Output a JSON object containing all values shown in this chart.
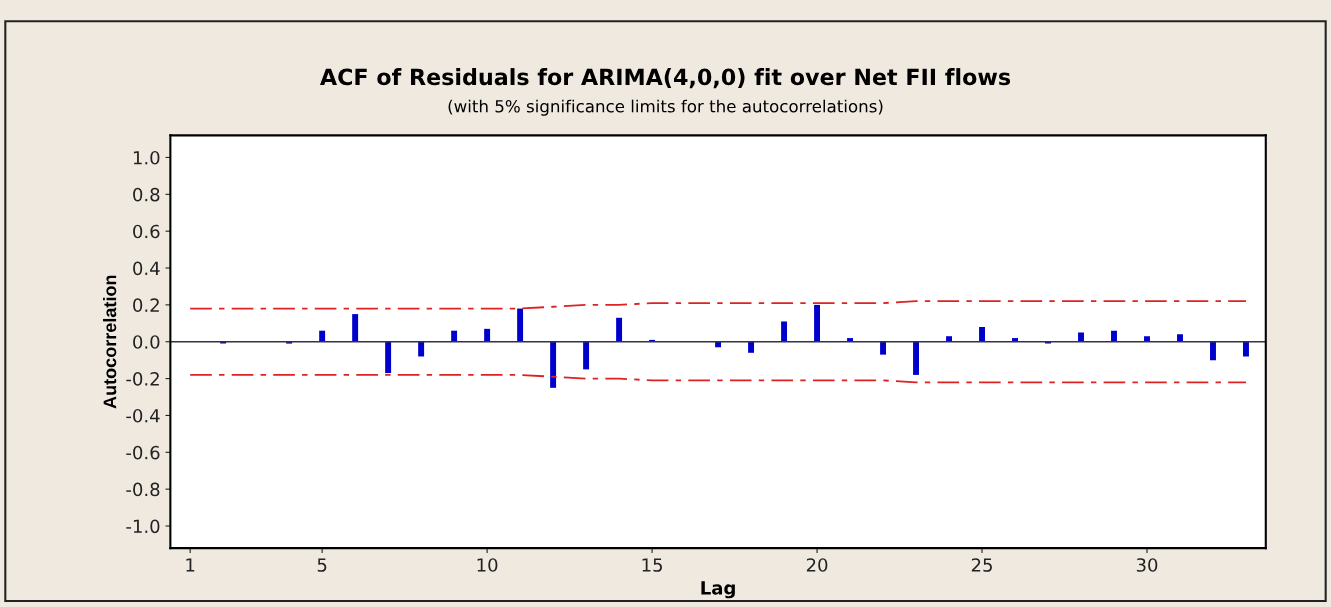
{
  "chart_data": {
    "type": "bar",
    "title": "ACF of Residuals for ARIMA(4,0,0) fit over Net FII flows",
    "subtitle": "(with 5% significance limits for the autocorrelations)",
    "xlabel": "Lag",
    "ylabel": "Autocorrelation",
    "x": [
      1,
      2,
      3,
      4,
      5,
      6,
      7,
      8,
      9,
      10,
      11,
      12,
      13,
      14,
      15,
      16,
      17,
      18,
      19,
      20,
      21,
      22,
      23,
      24,
      25,
      26,
      27,
      28,
      29,
      30,
      31,
      32,
      33
    ],
    "series": [
      {
        "color": "#0000cc",
        "values": [
          0.0,
          -0.01,
          0.0,
          -0.01,
          0.06,
          0.15,
          -0.17,
          -0.08,
          0.06,
          0.07,
          0.18,
          -0.25,
          -0.15,
          0.13,
          0.01,
          0.0,
          -0.03,
          -0.06,
          0.11,
          0.2,
          0.02,
          -0.07,
          -0.18,
          0.03,
          0.08,
          0.02,
          -0.01,
          0.05,
          0.06,
          0.03,
          0.04,
          -0.1,
          -0.08
        ]
      },
      {
        "type": "line",
        "color": "#dd2222",
        "line_style": "dashed",
        "values": [
          0.18,
          0.18,
          0.18,
          0.18,
          0.18,
          0.18,
          0.18,
          0.18,
          0.18,
          0.18,
          0.18,
          0.19,
          0.2,
          0.2,
          0.21,
          0.21,
          0.21,
          0.21,
          0.21,
          0.21,
          0.21,
          0.21,
          0.22,
          0.22,
          0.22,
          0.22,
          0.22,
          0.22,
          0.22,
          0.22,
          0.22,
          0.22,
          0.22
        ]
      },
      {
        "type": "line",
        "color": "#dd2222",
        "line_style": "dashed",
        "values": [
          -0.18,
          -0.18,
          -0.18,
          -0.18,
          -0.18,
          -0.18,
          -0.18,
          -0.18,
          -0.18,
          -0.18,
          -0.18,
          -0.19,
          -0.2,
          -0.2,
          -0.21,
          -0.21,
          -0.21,
          -0.21,
          -0.21,
          -0.21,
          -0.21,
          -0.21,
          -0.22,
          -0.22,
          -0.22,
          -0.22,
          -0.22,
          -0.22,
          -0.22,
          -0.22,
          -0.22,
          -0.22,
          -0.22
        ]
      }
    ],
    "xlim": [
      0.4,
      33.6
    ],
    "xticks": [
      1,
      5,
      10,
      15,
      20,
      25,
      30
    ],
    "ylim": [
      -1.12,
      1.12
    ],
    "yticks": [
      {
        "value": 1,
        "label": "1.0"
      },
      {
        "value": 0.8,
        "label": "0.8"
      },
      {
        "value": 0.6,
        "label": "0.6"
      },
      {
        "value": 0.4,
        "label": "0.4"
      },
      {
        "value": 0.2,
        "label": "0.2"
      },
      {
        "value": 0,
        "label": "0.0"
      },
      {
        "value": -0.2,
        "label": "-0.2"
      },
      {
        "value": -0.4,
        "label": "-0.4"
      },
      {
        "value": -0.6,
        "label": "-0.6"
      },
      {
        "value": -0.8,
        "label": "-0.8"
      },
      {
        "value": -1,
        "label": "-1.0"
      }
    ],
    "ref_lines": [
      {
        "axis": "y",
        "value": 0,
        "color": "#333344",
        "line_style": "solid"
      }
    ],
    "grid": false,
    "legend": false,
    "marker": "none"
  }
}
